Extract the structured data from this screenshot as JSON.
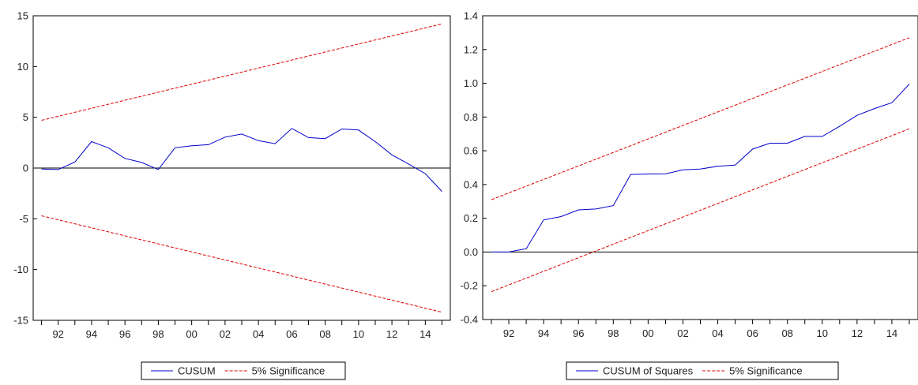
{
  "chart_data": [
    {
      "type": "line",
      "title": "",
      "xlabel": "",
      "ylabel": "",
      "xlim": [
        1991,
        2015
      ],
      "ylim": [
        -15,
        15
      ],
      "yticks": [
        15,
        10,
        5,
        0,
        -5,
        -10,
        -15
      ],
      "ytick_labels": [
        "15",
        "10",
        "5",
        "0",
        "-5",
        "-10",
        "-15"
      ],
      "xtick_labels": [
        {
          "x": 1992,
          "label": "92"
        },
        {
          "x": 1994,
          "label": "94"
        },
        {
          "x": 1996,
          "label": "96"
        },
        {
          "x": 1998,
          "label": "98"
        },
        {
          "x": 2000,
          "label": "00"
        },
        {
          "x": 2002,
          "label": "02"
        },
        {
          "x": 2004,
          "label": "04"
        },
        {
          "x": 2006,
          "label": "06"
        },
        {
          "x": 2008,
          "label": "08"
        },
        {
          "x": 2010,
          "label": "10"
        },
        {
          "x": 2012,
          "label": "12"
        },
        {
          "x": 2014,
          "label": "14"
        }
      ],
      "grid": false,
      "zero_line": true,
      "legend_position": "bottom-center",
      "series": [
        {
          "name": "CUSUM",
          "color": "#0000cc",
          "style": "solid",
          "x": [
            1991,
            1992,
            1993,
            1994,
            1995,
            1996,
            1997,
            1998,
            1999,
            2000,
            2001,
            2002,
            2003,
            2004,
            2005,
            2006,
            2007,
            2008,
            2009,
            2010,
            2011,
            2012,
            2013,
            2014,
            2015
          ],
          "y": [
            -0.1,
            -0.15,
            0.6,
            2.6,
            2.0,
            0.95,
            0.55,
            -0.15,
            2.0,
            2.2,
            2.3,
            3.05,
            3.35,
            2.7,
            2.4,
            3.9,
            3.0,
            2.9,
            3.85,
            3.75,
            2.6,
            1.3,
            0.4,
            -0.55,
            -2.3
          ]
        },
        {
          "name": "5% Significance",
          "color": "#dd0000",
          "style": "dashed",
          "x": [
            1991,
            2015
          ],
          "y": [
            4.7,
            14.2
          ]
        },
        {
          "name": "",
          "color": "#dd0000",
          "style": "dashed",
          "x": [
            1991,
            2015
          ],
          "y": [
            -4.7,
            -14.2
          ]
        }
      ]
    },
    {
      "type": "line",
      "title": "",
      "xlabel": "",
      "ylabel": "",
      "xlim": [
        1991,
        2015
      ],
      "ylim": [
        -0.4,
        1.4
      ],
      "yticks": [
        1.4,
        1.2,
        1.0,
        0.8,
        0.6,
        0.4,
        0.2,
        0.0,
        -0.2,
        -0.4
      ],
      "ytick_labels": [
        "1.4",
        "1.2",
        "1.0",
        "0.8",
        "0.6",
        "0.4",
        "0.2",
        "0.0",
        "-0.2",
        "-0.4"
      ],
      "xtick_labels": [
        {
          "x": 1992,
          "label": "92"
        },
        {
          "x": 1994,
          "label": "94"
        },
        {
          "x": 1996,
          "label": "96"
        },
        {
          "x": 1998,
          "label": "98"
        },
        {
          "x": 2000,
          "label": "00"
        },
        {
          "x": 2002,
          "label": "02"
        },
        {
          "x": 2004,
          "label": "04"
        },
        {
          "x": 2006,
          "label": "06"
        },
        {
          "x": 2008,
          "label": "08"
        },
        {
          "x": 2010,
          "label": "10"
        },
        {
          "x": 2012,
          "label": "12"
        },
        {
          "x": 2014,
          "label": "14"
        }
      ],
      "grid": false,
      "zero_line": true,
      "legend_position": "bottom-center",
      "series": [
        {
          "name": "CUSUM of Squares",
          "color": "#0000cc",
          "style": "solid",
          "x": [
            1991,
            1992,
            1993,
            1994,
            1995,
            1996,
            1997,
            1998,
            1999,
            2000,
            2001,
            2002,
            2003,
            2004,
            2005,
            2006,
            2007,
            2008,
            2009,
            2010,
            2011,
            2012,
            2013,
            2014,
            2015
          ],
          "y": [
            0.0,
            0.0,
            0.02,
            0.19,
            0.21,
            0.25,
            0.255,
            0.275,
            0.46,
            0.462,
            0.463,
            0.487,
            0.492,
            0.508,
            0.515,
            0.61,
            0.645,
            0.645,
            0.685,
            0.685,
            0.745,
            0.81,
            0.85,
            0.885,
            0.995
          ]
        },
        {
          "name": "5% Significance",
          "color": "#dd0000",
          "style": "dashed",
          "x": [
            1991,
            2015
          ],
          "y": [
            0.31,
            1.27
          ]
        },
        {
          "name": "",
          "color": "#dd0000",
          "style": "dashed",
          "x": [
            1991,
            2015
          ],
          "y": [
            -0.235,
            0.73
          ]
        }
      ]
    }
  ]
}
